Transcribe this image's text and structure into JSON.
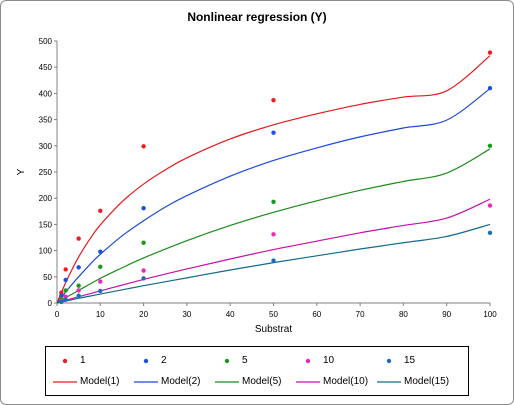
{
  "chart_data": {
    "type": "scatter",
    "title": "Nonlinear regression (Y)",
    "xlabel": "Substrat",
    "ylabel": "Y",
    "xlim": [
      0,
      100
    ],
    "ylim": [
      0,
      500
    ],
    "xticks": [
      "0",
      "10",
      "20",
      "30",
      "40",
      "50",
      "60",
      "70",
      "80",
      "90",
      "100"
    ],
    "yticks": [
      "0",
      "50",
      "100",
      "150",
      "200",
      "250",
      "300",
      "350",
      "400",
      "450",
      "500"
    ],
    "grid": false,
    "legend_position": "bottom",
    "series": [
      {
        "name": "1",
        "kind": "points",
        "color": "#ee1c24",
        "x": [
          1,
          2,
          5,
          10,
          20,
          50,
          100
        ],
        "y": [
          20,
          64,
          123,
          176,
          299,
          387,
          478
        ]
      },
      {
        "name": "2",
        "kind": "points",
        "color": "#1f4fe0",
        "x": [
          1,
          2,
          5,
          10,
          20,
          50,
          100
        ],
        "y": [
          14,
          44,
          68,
          98,
          181,
          325,
          410
        ]
      },
      {
        "name": "5",
        "kind": "points",
        "color": "#1a9a1a",
        "x": [
          1,
          2,
          5,
          10,
          20,
          50,
          100
        ],
        "y": [
          8,
          24,
          33,
          69,
          115,
          193,
          300
        ]
      },
      {
        "name": "10",
        "kind": "points",
        "color": "#e82ab8",
        "x": [
          1,
          2,
          5,
          10,
          20,
          50,
          100
        ],
        "y": [
          4,
          12,
          24,
          41,
          62,
          131,
          186
        ]
      },
      {
        "name": "15",
        "kind": "points",
        "color": "#1a6fb8",
        "x": [
          1,
          2,
          5,
          10,
          20,
          50,
          100
        ],
        "y": [
          2,
          6,
          14,
          23,
          47,
          81,
          134
        ]
      },
      {
        "name": "Model(1)",
        "kind": "line",
        "color": "#e41a1c",
        "x": [
          0,
          1,
          2,
          3,
          5,
          8,
          10,
          15,
          20,
          25,
          30,
          40,
          50,
          60,
          70,
          80,
          90,
          100
        ],
        "y": [
          0,
          20,
          39,
          56,
          88,
          127,
          149,
          193,
          227,
          254,
          277,
          313,
          340,
          361,
          379,
          393,
          405,
          472
        ]
      },
      {
        "name": "Model(2)",
        "kind": "line",
        "color": "#1c4bd6",
        "x": [
          0,
          1,
          2,
          3,
          5,
          8,
          10,
          15,
          20,
          25,
          30,
          40,
          50,
          60,
          70,
          80,
          90,
          100
        ],
        "y": [
          0,
          10,
          21,
          31,
          50,
          77,
          93,
          128,
          157,
          183,
          205,
          242,
          272,
          296,
          317,
          334,
          349,
          409
        ]
      },
      {
        "name": "Model(5)",
        "kind": "line",
        "color": "#1a8c1a",
        "x": [
          0,
          2,
          5,
          10,
          15,
          20,
          30,
          40,
          50,
          60,
          70,
          80,
          90,
          100
        ],
        "y": [
          0,
          10,
          24,
          47,
          67,
          86,
          119,
          148,
          173,
          195,
          215,
          232,
          248,
          294
        ]
      },
      {
        "name": "Model(10)",
        "kind": "line",
        "color": "#c010b0",
        "x": [
          0,
          2,
          5,
          10,
          20,
          30,
          40,
          50,
          60,
          70,
          80,
          90,
          100
        ],
        "y": [
          0,
          5,
          12,
          23,
          45,
          65,
          84,
          102,
          118,
          134,
          148,
          162,
          198
        ]
      },
      {
        "name": "Model(15)",
        "kind": "line",
        "color": "#106a8c",
        "x": [
          0,
          5,
          10,
          20,
          30,
          40,
          50,
          60,
          70,
          80,
          90,
          100
        ],
        "y": [
          0,
          9,
          17,
          33,
          48,
          63,
          77,
          90,
          103,
          115,
          127,
          150
        ]
      }
    ]
  }
}
